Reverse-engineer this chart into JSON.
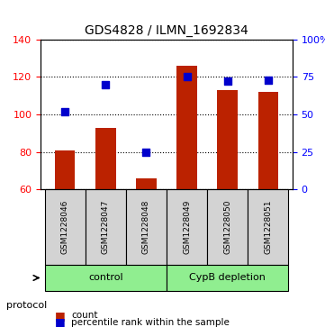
{
  "title": "GDS4828 / ILMN_1692834",
  "samples": [
    "GSM1228046",
    "GSM1228047",
    "GSM1228048",
    "GSM1228049",
    "GSM1228050",
    "GSM1228051"
  ],
  "bar_values": [
    81,
    93,
    66,
    126,
    113,
    112
  ],
  "percentile_values": [
    52,
    70,
    25,
    75,
    72,
    73
  ],
  "ylim_left": [
    60,
    140
  ],
  "ylim_right": [
    0,
    100
  ],
  "yticks_left": [
    60,
    80,
    100,
    120,
    140
  ],
  "yticks_right": [
    0,
    25,
    50,
    75,
    100
  ],
  "ytick_labels_right": [
    "0",
    "25",
    "50",
    "75",
    "100%"
  ],
  "bar_color": "#BB2200",
  "dot_color": "#0000CC",
  "bar_bottom": 60,
  "groups": [
    {
      "label": "control",
      "indices": [
        0,
        1,
        2
      ],
      "color": "#90EE90"
    },
    {
      "label": "CypB depletion",
      "indices": [
        3,
        4,
        5
      ],
      "color": "#90EE90"
    }
  ],
  "protocol_label": "protocol",
  "legend_bar_label": "count",
  "legend_dot_label": "percentile rank within the sample",
  "grid_dotted": true,
  "background_color": "#ffffff",
  "plot_bg_color": "#ffffff",
  "sample_box_color": "#D3D3D3"
}
